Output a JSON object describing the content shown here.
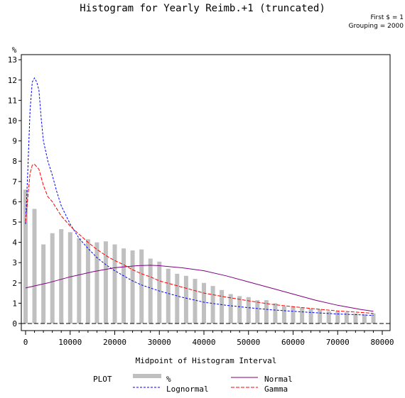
{
  "chart_data": {
    "type": "bar",
    "title": "Histogram for Yearly Reimb.+1 (truncated)",
    "note_lines": [
      "First $ = 1",
      "Grouping = 2000"
    ],
    "xlabel": "Midpoint of Histogram Interval",
    "ylabel": "%",
    "xlim": [
      -1000,
      81000
    ],
    "ylim": [
      0,
      13
    ],
    "xticks": [
      0,
      10000,
      20000,
      30000,
      40000,
      50000,
      60000,
      70000,
      80000
    ],
    "yticks": [
      0,
      1,
      2,
      3,
      4,
      5,
      6,
      7,
      8,
      9,
      10,
      11,
      12,
      13
    ],
    "grid": false,
    "legend": {
      "title": "PLOT",
      "position": "bottom",
      "entries": [
        {
          "label": "%",
          "style": "bar",
          "color": "#c0c0c0"
        },
        {
          "label": "Normal",
          "style": "solid",
          "color": "#800080"
        },
        {
          "label": "Lognormal",
          "style": "dashed",
          "color": "#0000ff"
        },
        {
          "label": "Gamma",
          "style": "dashed",
          "color": "#ff0000"
        }
      ]
    },
    "bars": {
      "name": "%",
      "color": "#c0c0c0",
      "x": [
        0,
        2000,
        4000,
        6000,
        8000,
        10000,
        12000,
        14000,
        16000,
        18000,
        20000,
        22000,
        24000,
        26000,
        28000,
        30000,
        32000,
        34000,
        36000,
        38000,
        40000,
        42000,
        44000,
        46000,
        48000,
        50000,
        52000,
        54000,
        56000,
        58000,
        60000,
        62000,
        64000,
        66000,
        68000,
        70000,
        72000,
        74000,
        76000,
        78000
      ],
      "values": [
        6.6,
        5.65,
        3.9,
        4.45,
        4.65,
        4.5,
        4.2,
        4.15,
        4.0,
        4.05,
        3.9,
        3.7,
        3.6,
        3.65,
        3.2,
        3.05,
        2.7,
        2.45,
        2.35,
        2.2,
        2.0,
        1.85,
        1.65,
        1.45,
        1.35,
        1.3,
        1.15,
        1.15,
        1.0,
        0.85,
        0.85,
        0.8,
        0.75,
        0.7,
        0.6,
        0.6,
        0.55,
        0.5,
        0.45,
        0.5
      ]
    },
    "series": [
      {
        "name": "Lognormal",
        "color": "#0000ff",
        "dash": "3,2",
        "points": [
          [
            0,
            4.9
          ],
          [
            500,
            7.5
          ],
          [
            1000,
            10.5
          ],
          [
            1500,
            11.9
          ],
          [
            2000,
            12.1
          ],
          [
            2500,
            11.9
          ],
          [
            3000,
            11.5
          ],
          [
            3500,
            10.1
          ],
          [
            4000,
            9.0
          ],
          [
            5000,
            8.0
          ],
          [
            6000,
            7.3
          ],
          [
            7000,
            6.5
          ],
          [
            8000,
            5.8
          ],
          [
            10000,
            4.9
          ],
          [
            12000,
            4.2
          ],
          [
            14000,
            3.7
          ],
          [
            16000,
            3.25
          ],
          [
            18000,
            2.9
          ],
          [
            20000,
            2.6
          ],
          [
            22000,
            2.35
          ],
          [
            24000,
            2.1
          ],
          [
            26000,
            1.9
          ],
          [
            28000,
            1.75
          ],
          [
            30000,
            1.6
          ],
          [
            35000,
            1.3
          ],
          [
            40000,
            1.05
          ],
          [
            45000,
            0.9
          ],
          [
            50000,
            0.78
          ],
          [
            55000,
            0.68
          ],
          [
            60000,
            0.6
          ],
          [
            65000,
            0.53
          ],
          [
            70000,
            0.47
          ],
          [
            75000,
            0.43
          ],
          [
            78000,
            0.4
          ]
        ]
      },
      {
        "name": "Gamma",
        "color": "#ff0000",
        "dash": "5,2",
        "points": [
          [
            0,
            5.0
          ],
          [
            500,
            6.2
          ],
          [
            1000,
            7.4
          ],
          [
            1500,
            7.8
          ],
          [
            2000,
            7.85
          ],
          [
            3000,
            7.6
          ],
          [
            4000,
            6.8
          ],
          [
            5000,
            6.25
          ],
          [
            6000,
            6.0
          ],
          [
            8000,
            5.3
          ],
          [
            10000,
            4.8
          ],
          [
            12000,
            4.4
          ],
          [
            14000,
            4.0
          ],
          [
            16000,
            3.65
          ],
          [
            18000,
            3.35
          ],
          [
            20000,
            3.1
          ],
          [
            22000,
            2.9
          ],
          [
            24000,
            2.65
          ],
          [
            26000,
            2.45
          ],
          [
            28000,
            2.3
          ],
          [
            30000,
            2.1
          ],
          [
            35000,
            1.8
          ],
          [
            40000,
            1.5
          ],
          [
            45000,
            1.3
          ],
          [
            50000,
            1.12
          ],
          [
            55000,
            0.95
          ],
          [
            60000,
            0.83
          ],
          [
            65000,
            0.72
          ],
          [
            70000,
            0.62
          ],
          [
            75000,
            0.55
          ],
          [
            78000,
            0.5
          ]
        ]
      },
      {
        "name": "Normal",
        "color": "#800080",
        "dash": "",
        "points": [
          [
            0,
            1.75
          ],
          [
            5000,
            2.0
          ],
          [
            10000,
            2.3
          ],
          [
            15000,
            2.55
          ],
          [
            20000,
            2.75
          ],
          [
            25000,
            2.85
          ],
          [
            28000,
            2.87
          ],
          [
            30000,
            2.85
          ],
          [
            35000,
            2.75
          ],
          [
            40000,
            2.6
          ],
          [
            45000,
            2.35
          ],
          [
            50000,
            2.05
          ],
          [
            55000,
            1.75
          ],
          [
            60000,
            1.45
          ],
          [
            65000,
            1.15
          ],
          [
            70000,
            0.9
          ],
          [
            75000,
            0.7
          ],
          [
            78000,
            0.6
          ]
        ]
      }
    ],
    "reference_line": {
      "y": 0,
      "style": "dashed"
    }
  }
}
